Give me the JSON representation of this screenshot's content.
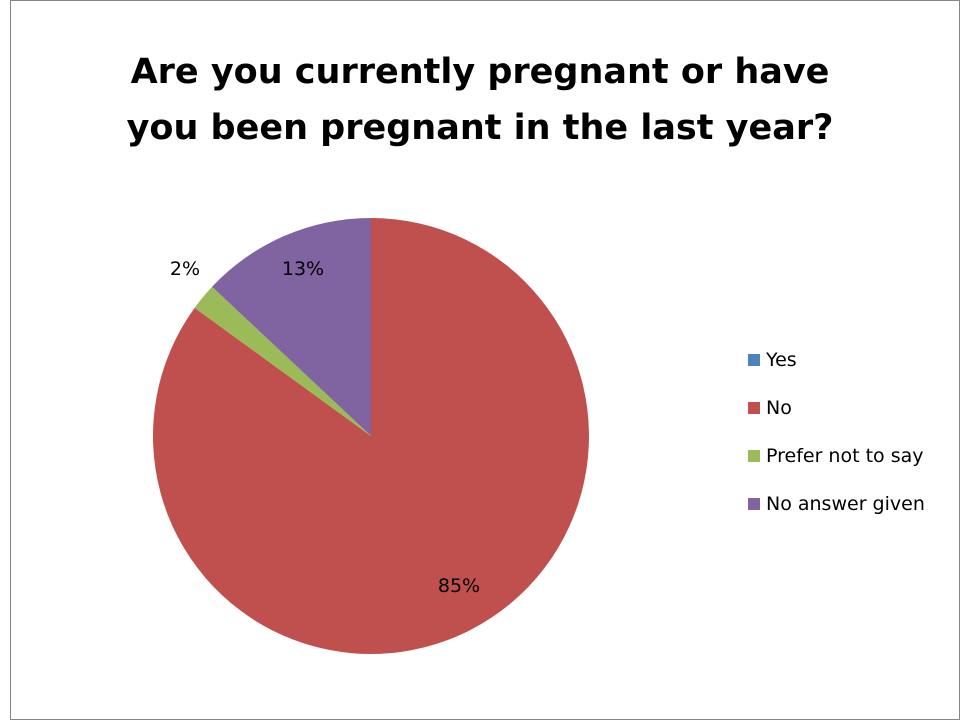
{
  "chart_data": {
    "type": "pie",
    "title_lines": [
      "Are you currently pregnant or have",
      "you been pregnant in the last year?"
    ],
    "categories": [
      "Yes",
      "No",
      "Prefer not to say",
      "No answer given"
    ],
    "values": [
      0,
      85,
      2,
      13
    ],
    "data_labels": [
      "",
      "85%",
      "2%",
      "13%"
    ],
    "colors": [
      "#4F81BD",
      "#C0504D",
      "#9BBB59",
      "#8064A2"
    ],
    "legend_position": "right"
  }
}
